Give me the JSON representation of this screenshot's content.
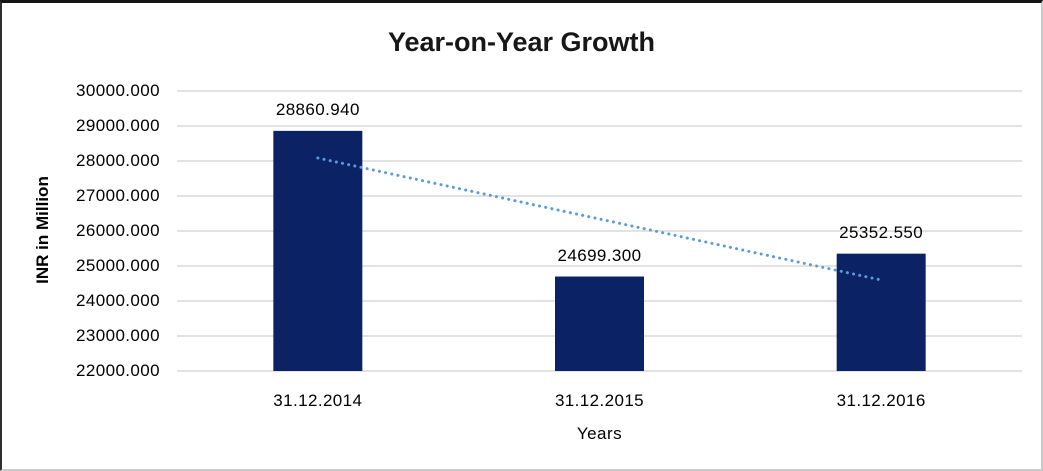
{
  "chart_data": {
    "type": "bar",
    "title": "Year-on-Year Growth",
    "xlabel": "Years",
    "ylabel": "INR in Million",
    "categories": [
      "31.12.2014",
      "31.12.2015",
      "31.12.2016"
    ],
    "values": [
      28860.94,
      24699.3,
      25352.55
    ],
    "data_labels": [
      "28860.940",
      "24699.300",
      "25352.550"
    ],
    "y_ticks": [
      "30000.000",
      "29000.000",
      "28000.000",
      "27000.000",
      "26000.000",
      "25000.000",
      "24000.000",
      "23000.000",
      "22000.000"
    ],
    "ylim": [
      22000,
      30000
    ],
    "grid": true,
    "legend": false,
    "bar_color": "#0b2265",
    "gridline_color": "#d9d9d9",
    "trendline": {
      "style": "dotted",
      "color": "#5b9bd5",
      "points": [
        {
          "category_index": 0,
          "value": 28086
        },
        {
          "category_index": 2,
          "value": 24600
        }
      ]
    }
  }
}
